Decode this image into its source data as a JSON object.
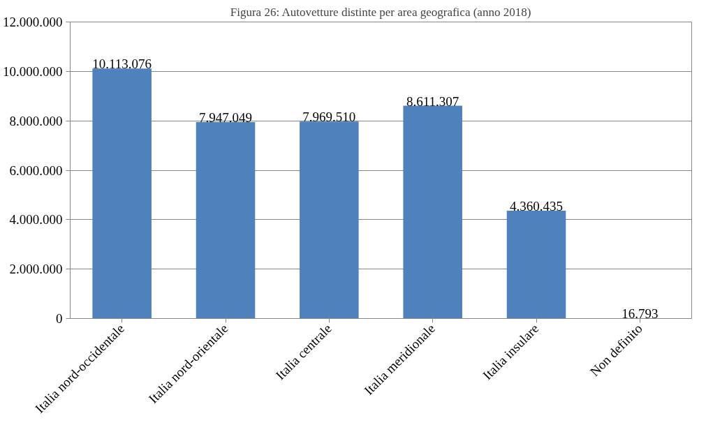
{
  "chart_data": {
    "type": "bar",
    "title": "Figura 26: Autovetture distinte per area geografica (anno 2018)",
    "categories": [
      "Italia nord-occidentale",
      "Italia nord-orientale",
      "Italia centrale",
      "Italia meridionale",
      "Italia insulare",
      "Non definito"
    ],
    "values": [
      10113076,
      7947049,
      7969510,
      8611307,
      4360435,
      16793
    ],
    "value_labels": [
      "10.113.076",
      "7.947.049",
      "7.969.510",
      "8.611.307",
      "4.360.435",
      "16.793"
    ],
    "color": "#4f81bd",
    "ylim": [
      0,
      12000000
    ],
    "yticks": [
      {
        "value": 0,
        "label": "0"
      },
      {
        "value": 2000000,
        "label": "2.000.000"
      },
      {
        "value": 4000000,
        "label": "4.000.000"
      },
      {
        "value": 6000000,
        "label": "6.000.000"
      },
      {
        "value": 8000000,
        "label": "8.000.000"
      },
      {
        "value": 10000000,
        "label": "10.000.000"
      },
      {
        "value": 12000000,
        "label": "12.000.000"
      }
    ],
    "grid": "y"
  }
}
